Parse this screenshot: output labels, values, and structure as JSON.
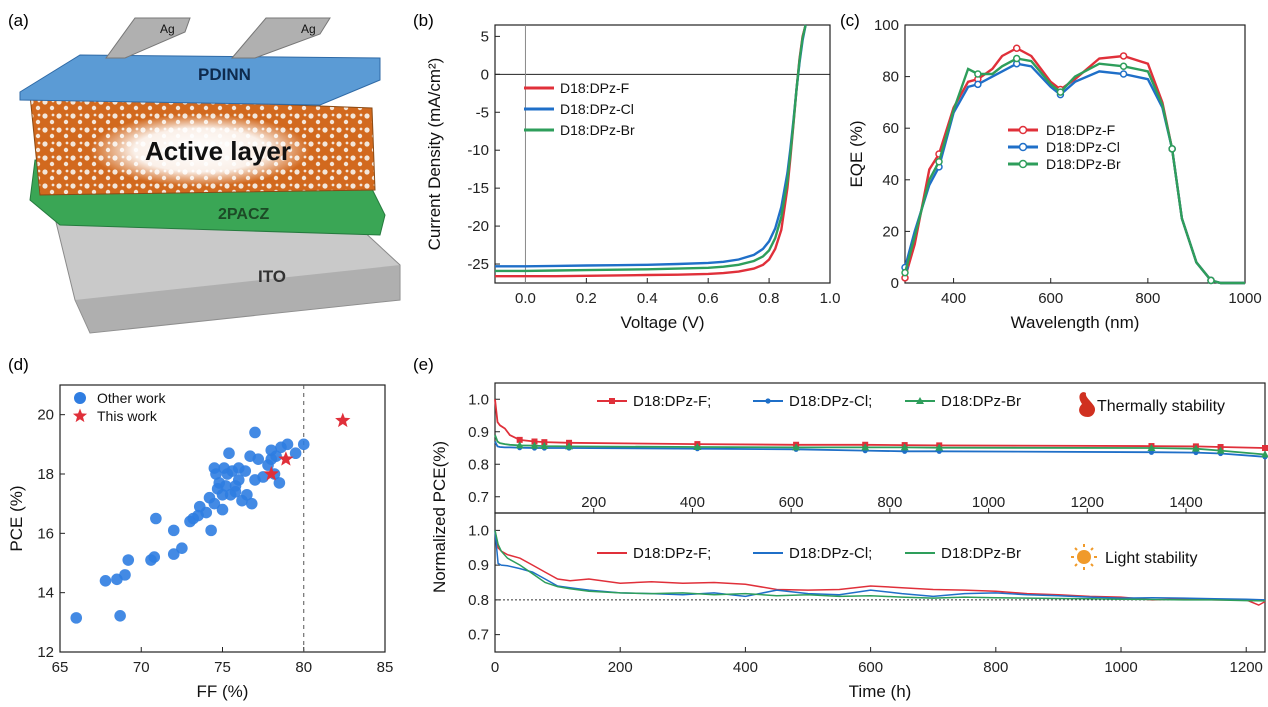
{
  "panel_labels": {
    "a": "(a)",
    "b": "(b)",
    "c": "(c)",
    "d": "(d)",
    "e": "(e)"
  },
  "device": {
    "electrode_1": "Ag",
    "electrode_2": "Ag",
    "layer_top": "PDINN",
    "layer_active": "Active layer",
    "layer_htl": "2PACZ",
    "layer_bottom": "ITO",
    "colors": {
      "pdinn": "#5b9bd5",
      "active": "#d2691e",
      "htl": "#3aa655",
      "ito": "#b8b8b8",
      "ag": "#a0a0a0"
    }
  },
  "colors": {
    "F": "#e0303a",
    "Cl": "#1f6fc8",
    "Br": "#2e9e5b",
    "scatter_other": "#2f7de1",
    "scatter_this": "#e0303a"
  },
  "chart_data": [
    {
      "id": "b",
      "type": "line",
      "xlabel": "Voltage (V)",
      "ylabel": "Current Density (mA/cm²)",
      "xlim": [
        -0.1,
        1.0
      ],
      "ylim": [
        -27.5,
        6.5
      ],
      "xticks": [
        "0.0",
        "0.2",
        "0.4",
        "0.6",
        "0.8",
        "1.0"
      ],
      "yticks": [
        "5",
        "0",
        "-5",
        "-10",
        "-15",
        "-20",
        "-25"
      ],
      "legend_position": "top-left",
      "series": [
        {
          "name": "D18:DPz-F",
          "x": [
            -0.1,
            0,
            0.1,
            0.2,
            0.3,
            0.4,
            0.5,
            0.6,
            0.65,
            0.7,
            0.75,
            0.78,
            0.8,
            0.82,
            0.84,
            0.86,
            0.87,
            0.88,
            0.89,
            0.9,
            0.91,
            0.92
          ],
          "y": [
            -26.6,
            -26.6,
            -26.6,
            -26.55,
            -26.5,
            -26.45,
            -26.4,
            -26.3,
            -26.2,
            -26.0,
            -25.6,
            -25.1,
            -24.4,
            -23.0,
            -20.5,
            -15.0,
            -11.0,
            -6.5,
            -2.0,
            2.0,
            5.0,
            6.5
          ]
        },
        {
          "name": "D18:DPz-Cl",
          "x": [
            -0.1,
            0,
            0.1,
            0.2,
            0.3,
            0.4,
            0.5,
            0.6,
            0.65,
            0.7,
            0.75,
            0.78,
            0.8,
            0.82,
            0.84,
            0.86,
            0.87,
            0.88,
            0.89,
            0.9,
            0.91,
            0.92
          ],
          "y": [
            -25.3,
            -25.3,
            -25.25,
            -25.2,
            -25.15,
            -25.1,
            -25.0,
            -24.85,
            -24.7,
            -24.4,
            -23.8,
            -23.0,
            -22.0,
            -20.3,
            -17.5,
            -13.0,
            -9.8,
            -6.0,
            -2.0,
            1.5,
            4.5,
            6.5
          ]
        },
        {
          "name": "D18:DPz-Br",
          "x": [
            -0.1,
            0,
            0.1,
            0.2,
            0.3,
            0.4,
            0.5,
            0.6,
            0.65,
            0.7,
            0.75,
            0.78,
            0.8,
            0.82,
            0.84,
            0.86,
            0.87,
            0.88,
            0.89,
            0.9,
            0.91,
            0.92
          ],
          "y": [
            -25.9,
            -25.9,
            -25.85,
            -25.8,
            -25.75,
            -25.7,
            -25.6,
            -25.5,
            -25.35,
            -25.1,
            -24.6,
            -24.0,
            -23.2,
            -21.6,
            -18.8,
            -14.0,
            -10.5,
            -6.3,
            -2.0,
            1.8,
            4.8,
            6.5
          ]
        }
      ]
    },
    {
      "id": "c",
      "type": "line",
      "xlabel": "Wavelength (nm)",
      "ylabel": "EQE (%)",
      "xlim": [
        300,
        1000
      ],
      "ylim": [
        0,
        100
      ],
      "xticks": [
        "400",
        "600",
        "800",
        "1000"
      ],
      "yticks": [
        "0",
        "20",
        "40",
        "60",
        "80",
        "100"
      ],
      "legend_position": "center",
      "series": [
        {
          "name": "D18:DPz-F",
          "x": [
            300,
            320,
            350,
            370,
            400,
            430,
            450,
            480,
            500,
            530,
            560,
            600,
            620,
            650,
            700,
            750,
            800,
            830,
            850,
            870,
            900,
            930,
            950,
            1000
          ],
          "y": [
            2,
            15,
            44,
            50,
            68,
            78,
            79,
            83,
            88,
            91,
            88,
            78,
            75,
            79,
            87,
            88,
            85,
            70,
            52,
            25,
            8,
            1,
            0,
            0
          ]
        },
        {
          "name": "D18:DPz-Cl",
          "x": [
            300,
            320,
            350,
            370,
            400,
            430,
            450,
            480,
            500,
            530,
            560,
            600,
            620,
            650,
            700,
            750,
            800,
            830,
            850,
            870,
            900,
            930,
            950,
            1000
          ],
          "y": [
            6,
            20,
            38,
            45,
            66,
            76,
            77,
            80,
            82,
            85,
            84,
            76,
            73,
            78,
            82,
            81,
            79,
            68,
            52,
            25,
            8,
            1,
            0,
            0
          ]
        },
        {
          "name": "D18:DPz-Br",
          "x": [
            300,
            320,
            350,
            370,
            400,
            430,
            450,
            480,
            500,
            530,
            560,
            600,
            620,
            650,
            700,
            750,
            800,
            830,
            850,
            870,
            900,
            930,
            950,
            1000
          ],
          "y": [
            4,
            18,
            40,
            47,
            67,
            83,
            81,
            81,
            84,
            87,
            86,
            77,
            74,
            80,
            85,
            84,
            82,
            69,
            52,
            25,
            8,
            1,
            0,
            0
          ]
        }
      ]
    },
    {
      "id": "d",
      "type": "scatter",
      "xlabel": "FF (%)",
      "ylabel": "PCE (%)",
      "xlim": [
        65,
        85
      ],
      "ylim": [
        12,
        21
      ],
      "xticks": [
        "65",
        "70",
        "75",
        "80",
        "85"
      ],
      "yticks": [
        "12",
        "14",
        "16",
        "18",
        "20"
      ],
      "legend_position": "top-left",
      "reference_x": 80,
      "series": [
        {
          "name": "Other work",
          "marker": "circle",
          "x": [
            66.0,
            68.7,
            67.8,
            68.5,
            69.0,
            69.2,
            70.6,
            70.8,
            70.9,
            72.0,
            72.0,
            72.5,
            73.0,
            73.2,
            73.5,
            73.6,
            74.0,
            74.2,
            74.3,
            74.5,
            74.6,
            74.7,
            74.8,
            75.0,
            75.0,
            75.1,
            75.2,
            75.3,
            75.4,
            75.5,
            75.6,
            75.8,
            76.0,
            76.0,
            76.2,
            76.5,
            76.7,
            76.8,
            77.0,
            77.0,
            77.2,
            77.5,
            77.8,
            78.0,
            78.0,
            78.2,
            78.3,
            78.5,
            78.6,
            79.0,
            79.5,
            80.0,
            74.5,
            75.8,
            76.4
          ],
          "y": [
            13.15,
            13.22,
            14.4,
            14.45,
            14.6,
            15.1,
            15.1,
            15.2,
            16.5,
            15.3,
            16.1,
            15.5,
            16.4,
            16.5,
            16.6,
            16.9,
            16.7,
            17.2,
            16.1,
            17.0,
            18.0,
            17.5,
            17.7,
            16.8,
            17.3,
            18.2,
            17.6,
            18.0,
            18.7,
            17.3,
            18.1,
            17.6,
            17.8,
            18.2,
            17.1,
            17.3,
            18.6,
            17.0,
            17.8,
            19.4,
            18.5,
            17.9,
            18.3,
            18.5,
            18.8,
            18.0,
            18.6,
            17.7,
            18.9,
            19.0,
            18.7,
            19.0,
            18.2,
            17.4,
            18.1
          ]
        },
        {
          "name": "This work",
          "marker": "star",
          "x": [
            78.0,
            78.9,
            82.4
          ],
          "y": [
            18.0,
            18.5,
            19.8
          ]
        }
      ]
    },
    {
      "id": "e_top",
      "type": "line",
      "title": "Thermally stability",
      "xlabel": "",
      "ylabel": "Normalized PCE(%)",
      "xlim": [
        0,
        1560
      ],
      "ylim": [
        0.65,
        1.05
      ],
      "xticks": [
        "200",
        "400",
        "600",
        "800",
        "1000",
        "1200",
        "1400"
      ],
      "yticks": [
        "0.7",
        "0.8",
        "0.9",
        "1.0"
      ],
      "legend_position": "top-center",
      "series": [
        {
          "name": "D18:DPz-F;",
          "marker": "square",
          "x": [
            0,
            5,
            10,
            20,
            30,
            50,
            80,
            100,
            150,
            410,
            610,
            750,
            830,
            900,
            1330,
            1420,
            1470,
            1560
          ],
          "y": [
            1.0,
            0.93,
            0.92,
            0.91,
            0.89,
            0.875,
            0.87,
            0.868,
            0.866,
            0.862,
            0.86,
            0.86,
            0.859,
            0.858,
            0.856,
            0.855,
            0.853,
            0.85
          ]
        },
        {
          "name": "D18:DPz-Cl;",
          "marker": "circle",
          "x": [
            0,
            5,
            10,
            20,
            30,
            50,
            80,
            100,
            150,
            410,
            610,
            750,
            830,
            900,
            1330,
            1420,
            1470,
            1560
          ],
          "y": [
            0.87,
            0.855,
            0.853,
            0.852,
            0.852,
            0.851,
            0.85,
            0.85,
            0.85,
            0.848,
            0.846,
            0.842,
            0.84,
            0.84,
            0.837,
            0.836,
            0.833,
            0.823
          ]
        },
        {
          "name": "D18:DPz-Br",
          "marker": "triangle",
          "x": [
            0,
            5,
            10,
            20,
            30,
            50,
            80,
            100,
            150,
            410,
            610,
            750,
            830,
            900,
            1330,
            1420,
            1470,
            1560
          ],
          "y": [
            0.89,
            0.87,
            0.865,
            0.862,
            0.86,
            0.858,
            0.857,
            0.856,
            0.855,
            0.853,
            0.852,
            0.852,
            0.852,
            0.851,
            0.85,
            0.848,
            0.842,
            0.83
          ]
        }
      ]
    },
    {
      "id": "e_bottom",
      "type": "line",
      "title": "Light stability",
      "xlabel": "Time (h)",
      "ylabel": "Normalized PCE(%)",
      "xlim": [
        0,
        1230
      ],
      "ylim": [
        0.65,
        1.05
      ],
      "xticks": [
        "0",
        "200",
        "400",
        "600",
        "800",
        "1000",
        "1200"
      ],
      "yticks": [
        "0.7",
        "0.8",
        "0.9",
        "1.0"
      ],
      "legend_position": "top-center",
      "reference_y": 0.8,
      "series": [
        {
          "name": "D18:DPz-F;",
          "x": [
            0,
            5,
            10,
            20,
            40,
            60,
            80,
            100,
            120,
            150,
            200,
            250,
            300,
            350,
            400,
            450,
            500,
            550,
            600,
            650,
            700,
            750,
            800,
            850,
            900,
            950,
            1000,
            1050,
            1100,
            1150,
            1200,
            1220,
            1230
          ],
          "y": [
            1.0,
            0.95,
            0.94,
            0.93,
            0.92,
            0.9,
            0.88,
            0.86,
            0.855,
            0.86,
            0.848,
            0.852,
            0.848,
            0.85,
            0.845,
            0.83,
            0.828,
            0.83,
            0.84,
            0.835,
            0.83,
            0.828,
            0.825,
            0.818,
            0.815,
            0.81,
            0.808,
            0.8,
            0.803,
            0.8,
            0.8,
            0.785,
            0.795
          ]
        },
        {
          "name": "D18:DPz-Cl;",
          "x": [
            0,
            5,
            10,
            20,
            40,
            60,
            80,
            100,
            120,
            150,
            200,
            250,
            300,
            350,
            400,
            450,
            500,
            550,
            600,
            650,
            700,
            750,
            800,
            850,
            900,
            950,
            1000,
            1050,
            1100,
            1150,
            1200,
            1230
          ],
          "y": [
            1.0,
            0.905,
            0.9,
            0.898,
            0.89,
            0.88,
            0.86,
            0.84,
            0.835,
            0.828,
            0.82,
            0.818,
            0.815,
            0.82,
            0.81,
            0.828,
            0.818,
            0.815,
            0.828,
            0.818,
            0.81,
            0.818,
            0.82,
            0.815,
            0.812,
            0.808,
            0.805,
            0.806,
            0.805,
            0.803,
            0.802,
            0.8
          ]
        },
        {
          "name": "D18:DPz-Br",
          "x": [
            0,
            5,
            10,
            20,
            40,
            60,
            80,
            100,
            120,
            150,
            200,
            250,
            300,
            350,
            400,
            450,
            500,
            550,
            600,
            650,
            700,
            750,
            800,
            850,
            900,
            950,
            1000,
            1050,
            1100,
            1150,
            1200,
            1230
          ],
          "y": [
            1.0,
            0.96,
            0.94,
            0.92,
            0.9,
            0.875,
            0.85,
            0.838,
            0.832,
            0.825,
            0.82,
            0.818,
            0.82,
            0.815,
            0.818,
            0.812,
            0.815,
            0.81,
            0.812,
            0.808,
            0.805,
            0.808,
            0.806,
            0.805,
            0.804,
            0.803,
            0.802,
            0.801,
            0.8,
            0.8,
            0.798,
            0.797
          ]
        }
      ]
    }
  ]
}
